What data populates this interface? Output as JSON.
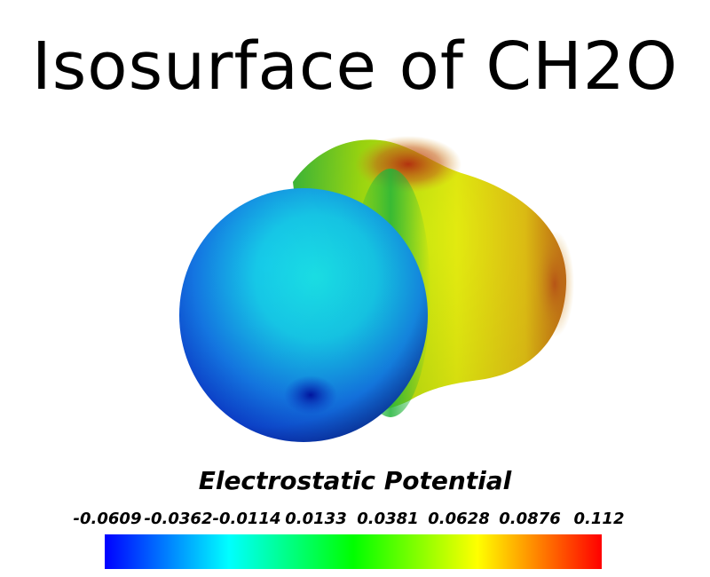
{
  "title": "Isosurface of CH2O",
  "colorbar": {
    "title": "Electrostatic Potential",
    "ticks": [
      "-0.0609",
      "-0.0362",
      "-0.0114",
      "0.0133",
      "0.0381",
      "0.0628",
      "0.0876",
      "0.112"
    ],
    "colors": [
      "#0000ff",
      "#00ffff",
      "#00ff00",
      "#ffff00",
      "#ff0000"
    ]
  }
}
